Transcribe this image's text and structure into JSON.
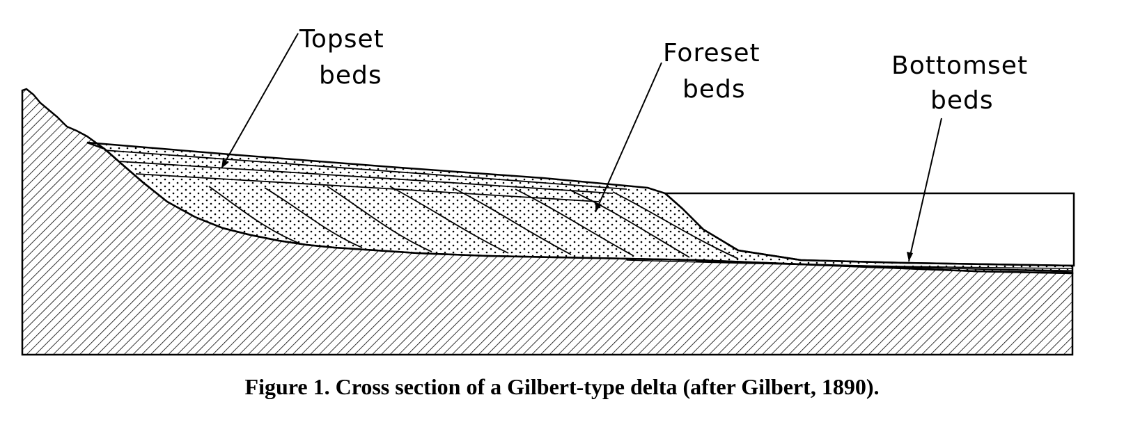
{
  "labels": {
    "topset": [
      "Topset",
      "beds"
    ],
    "foreset": [
      "Foreset",
      "beds"
    ],
    "bottomset": [
      "Bottomset",
      "beds"
    ]
  },
  "caption": "Figure 1. Cross section of a Gilbert-type delta (after Gilbert, 1890)."
}
